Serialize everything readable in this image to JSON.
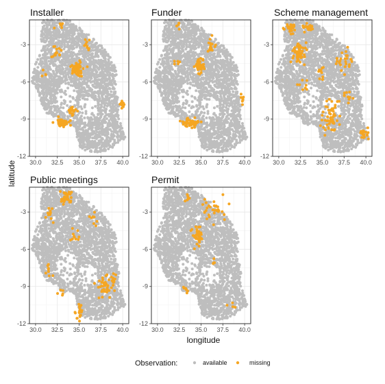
{
  "chart_data": {
    "type": "scatter",
    "xlabel": "longitude",
    "ylabel": "latitude",
    "xlim": [
      29.3,
      40.7
    ],
    "ylim": [
      -12,
      -1
    ],
    "xticks": [
      "30.0",
      "32.5",
      "35.0",
      "37.5",
      "40.0"
    ],
    "xtick_values": [
      30.0,
      32.5,
      35.0,
      37.5,
      40.0
    ],
    "yticks": [
      "-3",
      "-6",
      "-9",
      "-12"
    ],
    "ytick_values": [
      -3,
      -6,
      -9,
      -12
    ],
    "grid": true,
    "legend": {
      "title": "Observation:",
      "position": "bottom",
      "entries": [
        {
          "label": "available",
          "color": "#bebebe"
        },
        {
          "label": "missing",
          "color": "#f5a623"
        }
      ]
    },
    "panels": [
      {
        "title": "Installer",
        "missing_clusters": [
          {
            "x": 34.8,
            "y": -5.0,
            "sx": 0.35,
            "sy": 0.35,
            "n": 60
          },
          {
            "x": 33.2,
            "y": -9.3,
            "sx": 0.4,
            "sy": 0.15,
            "n": 45
          },
          {
            "x": 34.2,
            "y": -8.4,
            "sx": 0.2,
            "sy": 0.2,
            "n": 20
          },
          {
            "x": 39.9,
            "y": -7.8,
            "sx": 0.1,
            "sy": 0.15,
            "n": 12
          },
          {
            "x": 32.3,
            "y": -3.5,
            "sx": 0.3,
            "sy": 0.3,
            "n": 15
          },
          {
            "x": 33.0,
            "y": -1.5,
            "sx": 0.3,
            "sy": 0.1,
            "n": 6
          },
          {
            "x": 36.0,
            "y": -3.0,
            "sx": 0.3,
            "sy": 0.3,
            "n": 10
          },
          {
            "x": 31.0,
            "y": -5.2,
            "sx": 0.2,
            "sy": 0.2,
            "n": 4
          }
        ]
      },
      {
        "title": "Funder",
        "missing_clusters": [
          {
            "x": 34.8,
            "y": -4.8,
            "sx": 0.3,
            "sy": 0.3,
            "n": 40
          },
          {
            "x": 33.8,
            "y": -9.3,
            "sx": 0.5,
            "sy": 0.2,
            "n": 45
          },
          {
            "x": 36.1,
            "y": -3.2,
            "sx": 0.2,
            "sy": 0.3,
            "n": 15
          },
          {
            "x": 39.7,
            "y": -7.5,
            "sx": 0.1,
            "sy": 0.2,
            "n": 8
          },
          {
            "x": 32.3,
            "y": -1.5,
            "sx": 0.15,
            "sy": 0.1,
            "n": 4
          },
          {
            "x": 32.3,
            "y": -4.5,
            "sx": 0.2,
            "sy": 0.2,
            "n": 5
          }
        ]
      },
      {
        "title": "Scheme management",
        "missing_clusters": [
          {
            "x": 32.3,
            "y": -3.6,
            "sx": 0.4,
            "sy": 0.4,
            "n": 55
          },
          {
            "x": 31.2,
            "y": -1.6,
            "sx": 0.5,
            "sy": 0.2,
            "n": 30
          },
          {
            "x": 33.5,
            "y": -1.6,
            "sx": 0.4,
            "sy": 0.2,
            "n": 20
          },
          {
            "x": 36.0,
            "y": -8.8,
            "sx": 0.5,
            "sy": 0.6,
            "n": 55
          },
          {
            "x": 37.5,
            "y": -4.5,
            "sx": 0.5,
            "sy": 0.6,
            "n": 25
          },
          {
            "x": 39.8,
            "y": -10.2,
            "sx": 0.3,
            "sy": 0.3,
            "n": 20
          },
          {
            "x": 38.0,
            "y": -7.0,
            "sx": 0.3,
            "sy": 0.3,
            "n": 10
          },
          {
            "x": 34.8,
            "y": -5.2,
            "sx": 0.3,
            "sy": 0.3,
            "n": 10
          },
          {
            "x": 33.0,
            "y": -6.5,
            "sx": 0.3,
            "sy": 0.3,
            "n": 8
          }
        ]
      },
      {
        "title": "Public meetings",
        "missing_clusters": [
          {
            "x": 33.5,
            "y": -1.8,
            "sx": 0.5,
            "sy": 0.25,
            "n": 35
          },
          {
            "x": 37.8,
            "y": -9.0,
            "sx": 0.4,
            "sy": 0.4,
            "n": 40
          },
          {
            "x": 39.0,
            "y": -8.5,
            "sx": 0.2,
            "sy": 0.3,
            "n": 15
          },
          {
            "x": 35.0,
            "y": -11.0,
            "sx": 0.2,
            "sy": 0.4,
            "n": 20
          },
          {
            "x": 34.5,
            "y": -5.0,
            "sx": 0.3,
            "sy": 0.3,
            "n": 10
          },
          {
            "x": 31.5,
            "y": -3.0,
            "sx": 0.3,
            "sy": 0.3,
            "n": 10
          },
          {
            "x": 36.5,
            "y": -3.5,
            "sx": 0.3,
            "sy": 0.3,
            "n": 8
          },
          {
            "x": 31.5,
            "y": -7.5,
            "sx": 0.2,
            "sy": 0.3,
            "n": 8
          },
          {
            "x": 33.0,
            "y": -9.5,
            "sx": 0.2,
            "sy": 0.2,
            "n": 5
          }
        ]
      },
      {
        "title": "Permit",
        "missing_clusters": [
          {
            "x": 34.6,
            "y": -4.9,
            "sx": 0.3,
            "sy": 0.35,
            "n": 40
          },
          {
            "x": 36.5,
            "y": -2.8,
            "sx": 0.6,
            "sy": 0.5,
            "n": 30
          },
          {
            "x": 33.4,
            "y": -1.9,
            "sx": 0.2,
            "sy": 0.15,
            "n": 8
          },
          {
            "x": 33.3,
            "y": -9.2,
            "sx": 0.15,
            "sy": 0.15,
            "n": 6
          },
          {
            "x": 36.5,
            "y": -7.0,
            "sx": 0.2,
            "sy": 0.2,
            "n": 4
          },
          {
            "x": 38.5,
            "y": -10.5,
            "sx": 0.2,
            "sy": 0.2,
            "n": 4
          }
        ]
      }
    ]
  }
}
